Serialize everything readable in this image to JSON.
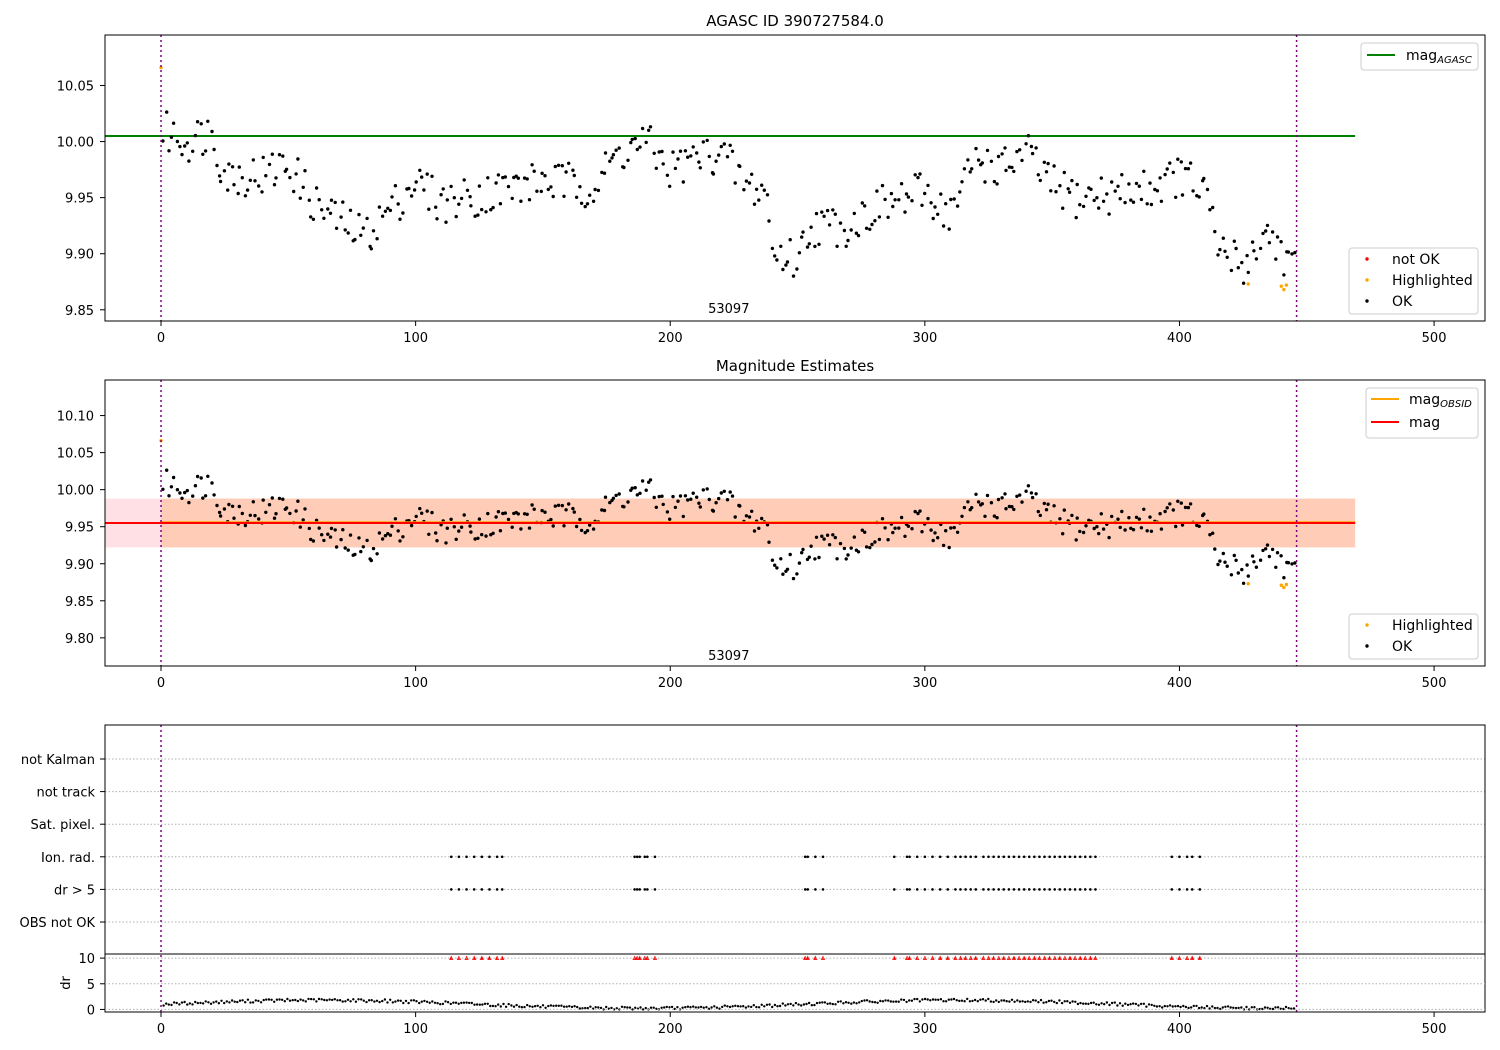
{
  "chart_data": [
    {
      "type": "scatter",
      "title": "AGASC ID 390727584.0",
      "xlim": [
        -22,
        520
      ],
      "ylim": [
        9.84,
        10.095
      ],
      "xticks": [
        0,
        100,
        200,
        300,
        400,
        500
      ],
      "yticks": [
        9.85,
        9.9,
        9.95,
        10.0,
        10.05
      ],
      "ytick_labels": [
        "9.85",
        "9.90",
        "9.95",
        "10.00",
        "10.05"
      ],
      "vlines": [
        0,
        446
      ],
      "annotation": {
        "text": "53097",
        "x": 223,
        "y": 9.847
      },
      "hlines": [
        {
          "name": "mag",
          "subscript": "AGASC",
          "y": 10.005,
          "x0": -22,
          "x1": 469,
          "color": "#008000"
        }
      ],
      "legend_lines": [
        {
          "name": "mag",
          "subscript": "AGASC",
          "color": "#008000"
        }
      ],
      "legend_points": [
        {
          "name": "not OK",
          "color": "#ff0000"
        },
        {
          "name": "Highlighted",
          "color": "#ffa500"
        },
        {
          "name": "OK",
          "color": "#000000"
        }
      ],
      "highlighted_points": [
        [
          0,
          10.066
        ],
        [
          427,
          9.873
        ],
        [
          440,
          9.871
        ],
        [
          441,
          9.868
        ],
        [
          442,
          9.872
        ]
      ],
      "band": null
    },
    {
      "type": "scatter",
      "title": "Magnitude Estimates",
      "xlim": [
        -22,
        520
      ],
      "ylim": [
        9.762,
        10.148
      ],
      "xticks": [
        0,
        100,
        200,
        300,
        400,
        500
      ],
      "yticks": [
        9.8,
        9.85,
        9.9,
        9.95,
        10.0,
        10.05,
        10.1
      ],
      "ytick_labels": [
        "9.80",
        "9.85",
        "9.90",
        "9.95",
        "10.00",
        "10.05",
        "10.10"
      ],
      "vlines": [
        0,
        446
      ],
      "annotation": {
        "text": "53097",
        "x": 223,
        "y": 9.77
      },
      "hlines": [
        {
          "name": "mag",
          "subscript": "OBSID",
          "y": 9.956,
          "x0": 0,
          "x1": 469,
          "color": "#ffa500"
        },
        {
          "name": "mag",
          "subscript": "",
          "y": 9.955,
          "x0": -22,
          "x1": 469,
          "color": "#ff0000"
        }
      ],
      "legend_lines": [
        {
          "name": "mag",
          "subscript": "OBSID",
          "color": "#ffa500"
        },
        {
          "name": "mag",
          "subscript": "",
          "color": "#ff0000"
        }
      ],
      "legend_points": [
        {
          "name": "Highlighted",
          "color": "#ffa500"
        },
        {
          "name": "OK",
          "color": "#000000"
        }
      ],
      "highlighted_points": [
        [
          0,
          10.066
        ],
        [
          427,
          9.873
        ],
        [
          440,
          9.871
        ],
        [
          441,
          9.868
        ],
        [
          442,
          9.872
        ]
      ],
      "band": {
        "red": [
          -22,
          469,
          9.922,
          9.988
        ],
        "orange": [
          0,
          469,
          9.922,
          9.988
        ]
      }
    },
    {
      "type": "scatter",
      "title": "",
      "xlim": [
        -22,
        520
      ],
      "category_labels": [
        "not Kalman",
        "not track",
        "Sat. pixel.",
        "Ion. rad.",
        "dr > 5",
        "OBS not OK"
      ],
      "flag_x": [
        114,
        117,
        120,
        123,
        126,
        129,
        132,
        134,
        186,
        187,
        188,
        190,
        191,
        194,
        253,
        254,
        257,
        260,
        288,
        293,
        294,
        297,
        300,
        303,
        306,
        309,
        312,
        314,
        316,
        318,
        320,
        323,
        325,
        327,
        329,
        331,
        333,
        335,
        337,
        339,
        341,
        343,
        345,
        347,
        349,
        351,
        353,
        355,
        357,
        359,
        361,
        363,
        365,
        367,
        397,
        400,
        403,
        405,
        408
      ],
      "dr_ylabel": "dr",
      "dr_yticks": [
        0,
        5,
        10
      ],
      "dr_ylim": [
        -0.5,
        10.8
      ],
      "vlines": [
        0,
        446
      ],
      "xticks": [
        0,
        100,
        200,
        300,
        400,
        500
      ]
    }
  ]
}
